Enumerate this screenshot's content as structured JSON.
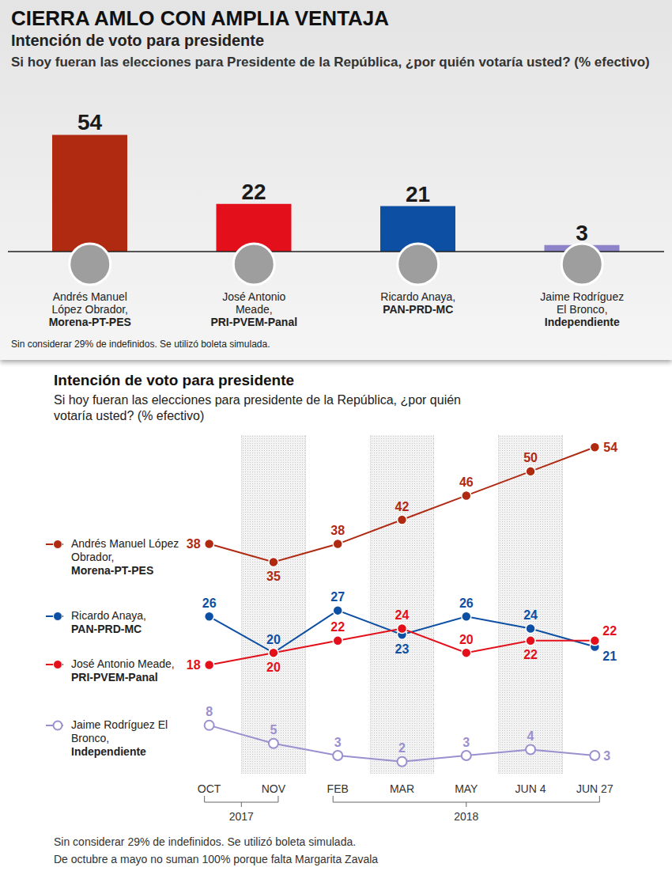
{
  "chart_data": [
    {
      "type": "bar",
      "title": "CIERRA AMLO CON AMPLIA VENTAJA",
      "subtitle": "Intención de voto para presidente",
      "question": "Si hoy fueran las elecciones para Presidente de la República, ¿por quién votaría usted? (% efectivo)",
      "categories": [
        "Andrés Manuel López Obrador, Morena-PT-PES",
        "José Antonio Meade, PRI-PVEM-Panal",
        "Ricardo Anaya, PAN-PRD-MC",
        "Jaime Rodríguez El Bronco, Independiente"
      ],
      "values": [
        54,
        22,
        21,
        3
      ],
      "colors": [
        "#b02a12",
        "#e3101b",
        "#0d4fa3",
        "#8c83c9"
      ],
      "ylim": [
        0,
        60
      ],
      "data_labels": true,
      "tick_labels": "x",
      "notes": [
        "Sin considerar 29% de indefinidos. Se utilizó boleta simulada."
      ]
    },
    {
      "type": "line",
      "title": "Intención de voto para presidente",
      "subtitle": "Si hoy fueran las elecciones para presidente de la República, ¿por quién votaría usted? (% efectivo)",
      "categories": [
        "OCT",
        "NOV",
        "FEB",
        "MAR",
        "MAY",
        "JUN 4",
        "JUN 27"
      ],
      "x_groups": [
        {
          "label": "2017",
          "from": "OCT",
          "to": "NOV"
        },
        {
          "label": "2018",
          "from": "FEB",
          "to": "JUN 27"
        }
      ],
      "series": [
        {
          "name": "Andrés Manuel López Obrador, Morena-PT-PES",
          "color": "#b02a12",
          "marker": "circle",
          "values": [
            38,
            35,
            38,
            42,
            46,
            50,
            54
          ]
        },
        {
          "name": "Ricardo Anaya, PAN-PRD-MC",
          "color": "#0d4fa3",
          "marker": "circle",
          "values": [
            26,
            20,
            27,
            23,
            26,
            24,
            21
          ]
        },
        {
          "name": "José Antonio Meade, PRI-PVEM-Panal",
          "color": "#e3101b",
          "marker": "circle",
          "values": [
            18,
            20,
            22,
            24,
            20,
            22,
            22
          ]
        },
        {
          "name": "Jaime Rodríguez El Bronco, Independiente",
          "color": "#9a90d0",
          "marker": "open_circle",
          "values": [
            8,
            5,
            3,
            2,
            3,
            4,
            3
          ]
        }
      ],
      "ylim": [
        0,
        56
      ],
      "data_labels": true,
      "tick_labels": "x",
      "legend": "left",
      "notes": [
        "Sin considerar 29% de indefinidos. Se utilizó boleta simulada.",
        "De octubre a mayo no suman 100% porque falta Margarita Zavala"
      ]
    }
  ]
}
